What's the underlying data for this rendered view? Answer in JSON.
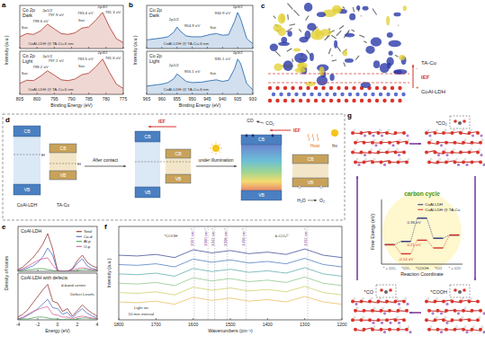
{
  "panel_labels": [
    "a",
    "b",
    "c",
    "d",
    "e",
    "f",
    "g"
  ],
  "chart_data": [
    {
      "type": "area",
      "title": "Co 2p",
      "subtitle": "Dark",
      "y_label": "Intensity (a.u.)",
      "xlim": [
        805,
        775
      ],
      "ylim": [
        0,
        1.1
      ],
      "xticks": [
        805,
        800,
        795,
        790,
        785,
        780,
        775
      ],
      "tick_labels": false,
      "x": [
        805,
        803,
        801,
        799,
        797,
        795,
        793,
        791,
        789,
        787,
        785,
        783,
        781,
        779,
        777,
        775
      ],
      "series": [
        {
          "color": "#b5473a",
          "values": [
            0.3,
            0.38,
            0.36,
            0.45,
            0.62,
            0.5,
            0.38,
            0.36,
            0.4,
            0.52,
            0.55,
            0.72,
            0.92,
            0.55,
            0.25,
            0.15
          ]
        }
      ],
      "annotations": [
        {
          "text": "2p1/2",
          "x": 797,
          "y": 0.95
        },
        {
          "text": "2p3/2",
          "x": 781,
          "y": 1.02
        },
        {
          "text": "Sat.",
          "x": 803.5,
          "y": 0.5
        },
        {
          "text": "Sat.",
          "x": 787,
          "y": 0.68
        },
        {
          "text": "799.6 eV",
          "x": 799,
          "y": 0.66
        },
        {
          "text": "797.9 eV",
          "x": 794.5,
          "y": 0.82
        },
        {
          "text": "783.4 eV",
          "x": 786,
          "y": 0.86
        },
        {
          "text": "781.3 eV",
          "x": 778,
          "y": 0.9
        },
        {
          "text": "CoAl-LDH @ TA-Cu-6 nm",
          "x": 796,
          "y": 0.1
        }
      ]
    },
    {
      "type": "area",
      "title": "Co 2p",
      "subtitle": "Light",
      "x_label": "Binding Energy (eV)",
      "xlim": [
        805,
        775
      ],
      "ylim": [
        0,
        1.1
      ],
      "xticks": [
        805,
        800,
        795,
        790,
        785,
        780,
        775
      ],
      "tick_labels": "x",
      "x": [
        805,
        803,
        801,
        799,
        797,
        795,
        793,
        791,
        789,
        787,
        785,
        783,
        781,
        779,
        777,
        775
      ],
      "series": [
        {
          "color": "#b5473a",
          "values": [
            0.28,
            0.36,
            0.35,
            0.46,
            0.6,
            0.49,
            0.37,
            0.35,
            0.39,
            0.5,
            0.54,
            0.7,
            0.9,
            0.56,
            0.26,
            0.15
          ]
        }
      ],
      "annotations": [
        {
          "text": "2p1/2",
          "x": 797,
          "y": 0.95
        },
        {
          "text": "2p3/2",
          "x": 781,
          "y": 1.02
        },
        {
          "text": "Sat.",
          "x": 803.5,
          "y": 0.5
        },
        {
          "text": "Sat.",
          "x": 787,
          "y": 0.68
        },
        {
          "text": "799.2 eV",
          "x": 799,
          "y": 0.66
        },
        {
          "text": "797.2 eV",
          "x": 794.5,
          "y": 0.82
        },
        {
          "text": "783.5 eV",
          "x": 786,
          "y": 0.86
        },
        {
          "text": "781.6 eV",
          "x": 778,
          "y": 0.9
        },
        {
          "text": "CoAl-LDH @ TA-Cu-6 nm",
          "x": 796,
          "y": 0.1
        }
      ]
    },
    {
      "type": "area",
      "title": "Cu 2p",
      "subtitle": "Dark",
      "y_label": "Intensity (a.u.)",
      "xlim": [
        965,
        930
      ],
      "ylim": [
        0,
        1.1
      ],
      "xticks": [
        965,
        960,
        955,
        950,
        945,
        940,
        935,
        930
      ],
      "tick_labels": false,
      "x": [
        965,
        962,
        960,
        958,
        956,
        955,
        954,
        952,
        950,
        947,
        944,
        942,
        940,
        938,
        936,
        935,
        934,
        932,
        930
      ],
      "series": [
        {
          "color": "#2f6fb3",
          "values": [
            0.22,
            0.25,
            0.27,
            0.3,
            0.42,
            0.55,
            0.45,
            0.32,
            0.3,
            0.3,
            0.36,
            0.38,
            0.34,
            0.35,
            0.7,
            0.92,
            0.75,
            0.25,
            0.12
          ]
        }
      ],
      "annotations": [
        {
          "text": "2p1/2",
          "x": 956,
          "y": 0.72
        },
        {
          "text": "954.9 eV",
          "x": 950,
          "y": 0.56
        },
        {
          "text": "Sat.",
          "x": 943,
          "y": 0.5
        },
        {
          "text": "2p3/2",
          "x": 935,
          "y": 1.02
        },
        {
          "text": "934.9 eV",
          "x": 940,
          "y": 0.86
        },
        {
          "text": "CoAl-LDH @ TA-Cu-6 nm",
          "x": 952,
          "y": 0.1
        }
      ]
    },
    {
      "type": "area",
      "title": "Cu 2p",
      "subtitle": "Light",
      "x_label": "Binding Energy (eV)",
      "xlim": [
        965,
        930
      ],
      "ylim": [
        0,
        1.1
      ],
      "xticks": [
        965,
        960,
        955,
        950,
        945,
        940,
        935,
        930
      ],
      "tick_labels": "x",
      "x": [
        965,
        962,
        960,
        958,
        956,
        955,
        954,
        952,
        950,
        947,
        944,
        942,
        940,
        938,
        936,
        935,
        934,
        932,
        930
      ],
      "series": [
        {
          "color": "#2f6fb3",
          "values": [
            0.21,
            0.24,
            0.26,
            0.3,
            0.4,
            0.52,
            0.46,
            0.33,
            0.3,
            0.31,
            0.35,
            0.37,
            0.33,
            0.36,
            0.66,
            0.9,
            0.78,
            0.27,
            0.12
          ]
        }
      ],
      "annotations": [
        {
          "text": "2p1/2",
          "x": 956,
          "y": 0.72
        },
        {
          "text": "955.1 eV",
          "x": 950,
          "y": 0.56
        },
        {
          "text": "Sat.",
          "x": 943,
          "y": 0.5
        },
        {
          "text": "2p3/2",
          "x": 935,
          "y": 1.02
        },
        {
          "text": "935.1 eV",
          "x": 940,
          "y": 0.86
        },
        {
          "text": "CoAl-LDH @ TA-Cu-6 nm",
          "x": 952,
          "y": 0.1
        }
      ]
    },
    {
      "type": "line",
      "title": "CoAl-LDH",
      "y_label": "Density of states",
      "xlim": [
        -4,
        4
      ],
      "ylim": [
        0,
        5
      ],
      "xticks": [
        -4,
        -2,
        0,
        2,
        4
      ],
      "tick_labels": false,
      "legend": "upper right",
      "x": [
        -4,
        -3.5,
        -3,
        -2.5,
        -2,
        -1.5,
        -1,
        -0.5,
        0,
        0.5,
        1,
        1.5,
        2,
        2.5,
        3,
        3.5,
        4
      ],
      "series": [
        {
          "name": "Total",
          "color": "#8b1a1a",
          "values": [
            0.2,
            0.5,
            1.0,
            1.5,
            2.2,
            3.0,
            4.2,
            2.5,
            0.1,
            0,
            0,
            0.3,
            1.2,
            1.8,
            1.0,
            0.6,
            0.4
          ]
        },
        {
          "name": "Co-d",
          "color": "#3a5bbf",
          "values": [
            0.1,
            0.2,
            0.4,
            0.6,
            1.0,
            1.6,
            2.6,
            1.8,
            0.05,
            0,
            0,
            0.2,
            0.9,
            1.4,
            0.6,
            0.3,
            0.2
          ]
        },
        {
          "name": "Al-p",
          "color": "#3a9a4a",
          "values": [
            0,
            0.1,
            0.2,
            0.2,
            0.3,
            0.3,
            0.2,
            0.1,
            0,
            0,
            0,
            0,
            0.1,
            0.2,
            0.2,
            0.1,
            0.1
          ]
        },
        {
          "name": "O-p",
          "color": "#d0508a",
          "values": [
            0.1,
            0.3,
            0.6,
            0.9,
            1.2,
            1.4,
            1.5,
            0.7,
            0.05,
            0,
            0,
            0.1,
            0.3,
            0.4,
            0.3,
            0.2,
            0.1
          ]
        }
      ]
    },
    {
      "type": "line",
      "title": "CoAl-LDH with defects",
      "x_label": "Energy (eV)",
      "xlim": [
        -4,
        4
      ],
      "ylim": [
        0,
        5
      ],
      "xticks": [
        -4,
        -2,
        0,
        2,
        4
      ],
      "tick_labels": "x",
      "x": [
        -4,
        -3.5,
        -3,
        -2.5,
        -2,
        -1.5,
        -1,
        -0.5,
        0,
        0.5,
        1,
        1.5,
        2,
        2.5,
        3,
        3.5,
        4
      ],
      "series": [
        {
          "color": "#8b1a1a",
          "values": [
            0.3,
            0.6,
            1.1,
            1.8,
            2.5,
            3.2,
            3.8,
            2.0,
            1.8,
            0.9,
            1.2,
            0.4,
            1.0,
            1.6,
            1.1,
            0.7,
            0.4
          ]
        },
        {
          "color": "#3a5bbf",
          "values": [
            0.1,
            0.2,
            0.5,
            0.8,
            1.2,
            1.7,
            2.2,
            1.3,
            1.2,
            0.6,
            0.8,
            0.2,
            0.8,
            1.2,
            0.7,
            0.4,
            0.2
          ]
        },
        {
          "color": "#3a9a4a",
          "values": [
            0,
            0.1,
            0.1,
            0.2,
            0.3,
            0.3,
            0.2,
            0.1,
            0.1,
            0,
            0.1,
            0,
            0.1,
            0.2,
            0.2,
            0.1,
            0.1
          ]
        },
        {
          "color": "#d0508a",
          "values": [
            0.1,
            0.3,
            0.6,
            0.9,
            1.1,
            1.3,
            1.4,
            0.6,
            0.5,
            0.3,
            0.3,
            0.1,
            0.3,
            0.4,
            0.3,
            0.2,
            0.1
          ]
        }
      ],
      "annotations": [
        {
          "text": "d-band center",
          "x": 1.6,
          "y": 3.6
        },
        {
          "text": "Defect Levels",
          "x": 2.5,
          "y": 2.6
        }
      ]
    },
    {
      "type": "line",
      "y_label": "Intensity (a.u.)",
      "x_label": "Wavenumbers (cm⁻¹)",
      "xlim": [
        1800,
        1200
      ],
      "ylim": [
        0,
        12
      ],
      "xticks": [
        1800,
        1700,
        1600,
        1500,
        1400,
        1300,
        1200
      ],
      "tick_labels": "x",
      "x": [
        1800,
        1750,
        1700,
        1650,
        1600,
        1550,
        1500,
        1450,
        1400,
        1350,
        1300,
        1250,
        1200
      ],
      "series": [
        {
          "color": "#2b3a8c",
          "values": [
            8.3,
            8.2,
            8.4,
            8.0,
            9.0,
            8.6,
            8.9,
            8.5,
            8.7,
            8.4,
            9.1,
            8.3,
            8.0
          ]
        },
        {
          "color": "#3b6fb6",
          "values": [
            7.1,
            7.0,
            7.2,
            6.8,
            7.8,
            7.4,
            7.7,
            7.3,
            7.5,
            7.2,
            7.9,
            7.1,
            6.8
          ]
        },
        {
          "color": "#4fa3a5",
          "values": [
            5.9,
            5.8,
            6.0,
            5.6,
            6.6,
            6.2,
            6.5,
            6.1,
            6.3,
            6.0,
            6.7,
            5.9,
            5.6
          ]
        },
        {
          "color": "#7fbf7b",
          "values": [
            4.7,
            4.6,
            4.8,
            4.4,
            5.4,
            5.0,
            5.3,
            4.9,
            5.1,
            4.8,
            5.5,
            4.7,
            4.4
          ]
        },
        {
          "color": "#c9c95a",
          "values": [
            3.5,
            3.4,
            3.6,
            3.2,
            4.2,
            3.8,
            4.1,
            3.7,
            3.9,
            3.6,
            4.3,
            3.5,
            3.2
          ]
        },
        {
          "color": "#e8b84a",
          "values": [
            2.3,
            2.2,
            2.4,
            2.0,
            2.9,
            2.5,
            2.8,
            2.4,
            2.6,
            2.3,
            3.0,
            2.3,
            2.0
          ]
        }
      ],
      "vlines": [
        {
          "x": 1597,
          "label": "1597 cm⁻¹"
        },
        {
          "x": 1560,
          "label": "1560 cm⁻¹"
        },
        {
          "x": 1542,
          "label": "1542 cm⁻¹"
        },
        {
          "x": 1508,
          "label": "1508 cm⁻¹"
        },
        {
          "x": 1458,
          "label": "1458 cm⁻¹"
        },
        {
          "x": 1292,
          "label": "1292 cm⁻¹"
        }
      ],
      "annotations": [
        {
          "text": "*COOH",
          "x": 1660,
          "y": 10.6
        },
        {
          "text": "b-CO₃²⁻",
          "x": 1360,
          "y": 10.6
        },
        {
          "text": "Light on",
          "x": 1740,
          "y": 1.4
        },
        {
          "text": "10 min interval",
          "x": 1740,
          "y": 0.6
        }
      ]
    },
    {
      "type": "step",
      "title": "carbon cycle",
      "y_label": "Free Energy (eV)",
      "x_label": "Reaction Coordinate",
      "categories": [
        "* + CO₂",
        "*CO₂",
        "*COOH",
        "*CO",
        "* + CO"
      ],
      "ylim": [
        -0.3,
        0.7
      ],
      "tick_labels": "x",
      "legend": "upper right",
      "series": [
        {
          "name": "CoAl-LDH",
          "color": "#23307a",
          "values": [
            0,
            0.05,
            0.41,
            0.1,
            0.15
          ]
        },
        {
          "name": "CoAl-LDH @ TA-Cu",
          "color": "#d0342c",
          "values": [
            0,
            -0.14,
            0.07,
            -0.05,
            0.15
          ]
        }
      ],
      "annotations": [
        {
          "text": "-0.14 eV",
          "x": 1,
          "y": -0.24,
          "color": "#d0342c"
        },
        {
          "text": "0.36 eV",
          "x": 1.5,
          "y": 0.32,
          "color": "#23307a"
        },
        {
          "text": "0.21 eV",
          "x": 1.5,
          "y": -0.02,
          "color": "#d0342c"
        }
      ]
    }
  ],
  "diagram_c": {
    "labels": [
      "TA-Cu",
      "IEF",
      "CoAl-LDH"
    ],
    "signs": [
      "-",
      "+"
    ]
  },
  "diagram_d": {
    "cb": "CB",
    "vb": "VB",
    "materials": [
      "CoAl-LDH",
      "TA-Cu"
    ],
    "steps": [
      "After contact",
      "under illumination"
    ],
    "ief": "IEF",
    "ef": "Ef",
    "co2": "CO₂",
    "co": "CO",
    "h2o": "H₂O",
    "o2": "O₂",
    "heat": "Heat",
    "light": "hν"
  },
  "diagram_g": {
    "states": [
      "*CO₂",
      "*COOH",
      "*CO"
    ]
  }
}
